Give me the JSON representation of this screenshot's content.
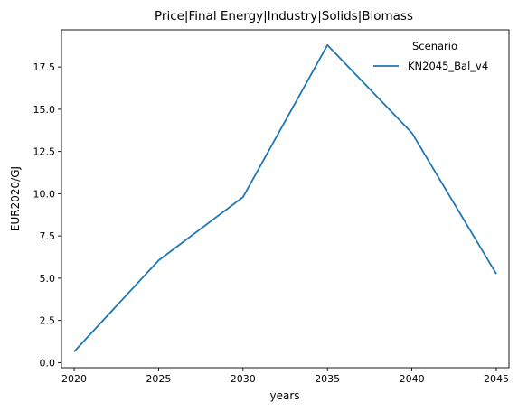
{
  "chart_data": {
    "type": "line",
    "title": "Price|Final Energy|Industry|Solids|Biomass",
    "xlabel": "years",
    "ylabel": "EUR2020/GJ",
    "x": [
      2020,
      2025,
      2030,
      2035,
      2040,
      2045
    ],
    "x_tick_labels": [
      "2020",
      "2025",
      "2030",
      "2035",
      "2040",
      "2045"
    ],
    "y_ticks": [
      0.0,
      2.5,
      5.0,
      7.5,
      10.0,
      12.5,
      15.0,
      17.5
    ],
    "y_tick_labels": [
      "0.0",
      "2.5",
      "5.0",
      "7.5",
      "10.0",
      "12.5",
      "15.0",
      "17.5"
    ],
    "xlim": [
      2019.25,
      2045.75
    ],
    "ylim": [
      -0.3,
      19.7
    ],
    "grid": false,
    "legend": {
      "title": "Scenario",
      "placement": "top-right"
    },
    "series": [
      {
        "name": "KN2045_Bal_v4",
        "color": "#1f77b4",
        "values": [
          0.65,
          6.05,
          9.8,
          18.8,
          13.6,
          5.25
        ]
      }
    ]
  }
}
